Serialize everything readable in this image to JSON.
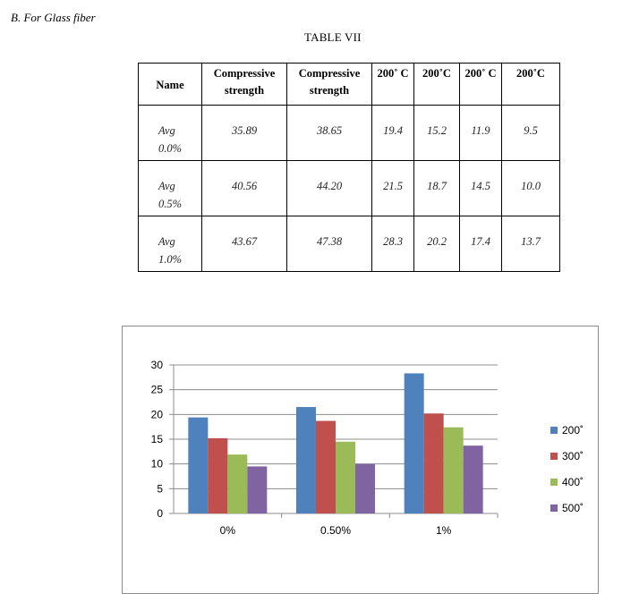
{
  "heading": "B.  For Glass fiber",
  "table_caption": "TABLE VII",
  "table": {
    "headers": [
      "Name",
      "Compressive strength",
      "Compressive strength",
      "200˚ C",
      "200˚C",
      "200˚ C",
      "200˚C"
    ],
    "rows": [
      {
        "label": "Avg 0.0%",
        "values": [
          "35.89",
          "38.65",
          "19.4",
          "15.2",
          "11.9",
          "9.5"
        ]
      },
      {
        "label": "Avg 0.5%",
        "values": [
          "40.56",
          "44.20",
          "21.5",
          "18.7",
          "14.5",
          "10.0"
        ]
      },
      {
        "label": "Avg 1.0%",
        "values": [
          "43.67",
          "47.38",
          "28.3",
          "20.2",
          "17.4",
          "13.7"
        ]
      }
    ]
  },
  "chart_data": {
    "type": "bar",
    "categories": [
      "0%",
      "0.50%",
      "1%"
    ],
    "series": [
      {
        "name": "200˚",
        "color": "#4f81bd",
        "values": [
          19.4,
          21.5,
          28.3
        ]
      },
      {
        "name": "300˚",
        "color": "#c0504d",
        "values": [
          15.2,
          18.7,
          20.2
        ]
      },
      {
        "name": "400˚",
        "color": "#9bbb59",
        "values": [
          11.9,
          14.5,
          17.4
        ]
      },
      {
        "name": "500˚",
        "color": "#8064a2",
        "values": [
          9.5,
          10.0,
          13.7
        ]
      }
    ],
    "yticks": [
      "0",
      "5",
      "10",
      "15",
      "20",
      "25",
      "30"
    ],
    "ylim": [
      0,
      30
    ],
    "grid": true,
    "legend": "right"
  }
}
